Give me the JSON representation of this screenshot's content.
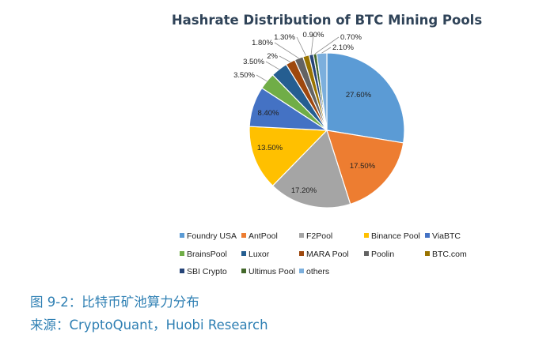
{
  "figure": {
    "caption": "图 9-2：比特币矿池算力分布",
    "source": "来源：CryptoQuant，Huobi Research"
  },
  "chart_data": {
    "type": "pie",
    "title": "Hashrate Distribution of BTC Mining Pools",
    "legend_position": "bottom",
    "slices": [
      {
        "name": "Foundry USA",
        "value": 27.6,
        "label": "27.60%",
        "color": "#5b9bd5"
      },
      {
        "name": "AntPool",
        "value": 17.5,
        "label": "17.50%",
        "color": "#ed7d31"
      },
      {
        "name": "F2Pool",
        "value": 17.2,
        "label": "17.20%",
        "color": "#a5a5a5"
      },
      {
        "name": "Binance Pool",
        "value": 13.5,
        "label": "13.50%",
        "color": "#ffc000"
      },
      {
        "name": "ViaBTC",
        "value": 8.4,
        "label": "8.40%",
        "color": "#4472c4"
      },
      {
        "name": "BrainsPool",
        "value": 3.5,
        "label": "3.50%",
        "color": "#70ad47"
      },
      {
        "name": "Luxor",
        "value": 3.5,
        "label": "3.50%",
        "color": "#255e91"
      },
      {
        "name": "MARA Pool",
        "value": 2.0,
        "label": "2%",
        "color": "#9e480e"
      },
      {
        "name": "Poolin",
        "value": 1.8,
        "label": "1.80%",
        "color": "#636363"
      },
      {
        "name": "BTC.com",
        "value": 1.3,
        "label": "1.30%",
        "color": "#997300"
      },
      {
        "name": "SBI Crypto",
        "value": 0.9,
        "label": "0.90%",
        "color": "#264478"
      },
      {
        "name": "Ultimus Pool",
        "value": 0.7,
        "label": "0.70%",
        "color": "#43682b"
      },
      {
        "name": "others",
        "value": 2.1,
        "label": "2.10%",
        "color": "#7cafdd"
      }
    ]
  }
}
